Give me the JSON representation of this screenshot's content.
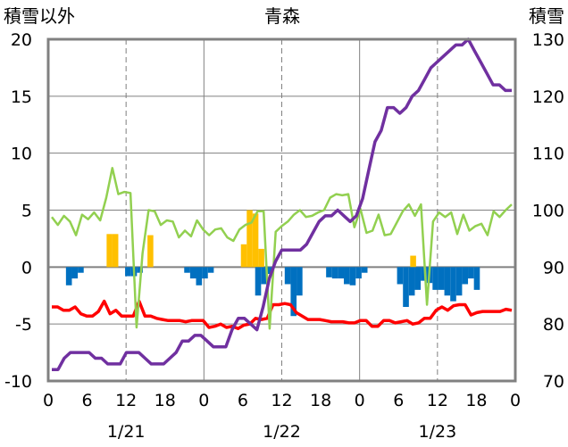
{
  "chart_data": {
    "type": "line",
    "title": "青森",
    "y_left_label": "積雪以外",
    "y_right_label": "積雪",
    "y_left_ticks": [
      "20",
      "15",
      "10",
      "5",
      "0",
      "-5",
      "-10"
    ],
    "y_right_ticks": [
      "130",
      "120",
      "110",
      "100",
      "90",
      "80",
      "70"
    ],
    "ylim_left": [
      -10,
      20
    ],
    "ylim_right": [
      70,
      130
    ],
    "x_tick_labels": [
      "0",
      "6",
      "12",
      "18",
      "0",
      "6",
      "12",
      "18",
      "0",
      "6",
      "12",
      "18",
      "0"
    ],
    "date_labels": [
      "1/21",
      "1/22",
      "1/23"
    ],
    "grid": "dashed at 12h marks, solid at day boundaries",
    "series": [
      {
        "key": "temperature",
        "color": "#ff0000",
        "axis": "left",
        "values": [
          -3.5,
          -3.5,
          -3.8,
          -3.8,
          -3.5,
          -4.1,
          -4.3,
          -4.3,
          -3.9,
          -3,
          -4.1,
          -3.8,
          -4.3,
          -4.3,
          -4.3,
          -3,
          -4.3,
          -4.3,
          -4.5,
          -4.6,
          -4.7,
          -4.7,
          -4.7,
          -4.8,
          -4.7,
          -4.7,
          -4.7,
          -5.3,
          -5.2,
          -5,
          -5.3,
          -5.2,
          -5.4,
          -5.1,
          -5,
          -4.5,
          -4.6,
          -4.5,
          -3.3,
          -3.3,
          -3.2,
          -3.3,
          -4,
          -4.3,
          -4.6,
          -4.6,
          -4.6,
          -4.7,
          -4.8,
          -4.8,
          -4.8,
          -4.9,
          -4.9,
          -4.7,
          -4.7,
          -5.2,
          -5.2,
          -4.7,
          -4.7,
          -4.9,
          -4.8,
          -4.7,
          -5,
          -4.9,
          -4.5,
          -4.5,
          -3.8,
          -3.5,
          -3.8,
          -3.4,
          -3.3,
          -3.3,
          -4.2,
          -4.0,
          -3.9,
          -3.9,
          -3.9,
          -3.9,
          -3.7,
          -3.8
        ]
      },
      {
        "key": "wind_speed",
        "color": "#92d050",
        "axis": "left",
        "values": [
          4.4,
          3.7,
          4.5,
          4,
          2.8,
          4.6,
          4.2,
          4.8,
          4.1,
          6.1,
          8.7,
          6.4,
          6.6,
          6.5,
          -5.3,
          1.2,
          5,
          4.9,
          3.7,
          4.1,
          4,
          2.6,
          3.2,
          2.7,
          4.1,
          3.3,
          2.8,
          3.3,
          3.4,
          2.6,
          2.3,
          3.3,
          3.7,
          3.9,
          4.9,
          4.9,
          -5.4,
          3.1,
          3.6,
          4,
          4.6,
          5,
          4.4,
          4.5,
          4.8,
          5,
          6.1,
          6.4,
          6.3,
          6.4,
          3.5,
          5.1,
          3,
          3.2,
          4.6,
          2.8,
          2.9,
          3.9,
          4.9,
          5.5,
          4.5,
          5.5,
          -3.3,
          4,
          4.8,
          4.4,
          4.8,
          2.9,
          4.6,
          3.2,
          3.6,
          3.8,
          2.8,
          4.9,
          4.4,
          5,
          5.5
        ]
      },
      {
        "key": "snow_depth",
        "color": "#7030a0",
        "axis": "right",
        "values": [
          72,
          72,
          74,
          75,
          75,
          75,
          75,
          74,
          74,
          73,
          73,
          73,
          75,
          75,
          75,
          74,
          73,
          73,
          73,
          74,
          75,
          77,
          77,
          78,
          78,
          77,
          76,
          76,
          76,
          79,
          81,
          81,
          80,
          79,
          83,
          88,
          91,
          93,
          93,
          93,
          93,
          94,
          96,
          98,
          99,
          99,
          100,
          99,
          98,
          99,
          102,
          107,
          112,
          114,
          118,
          118,
          117,
          118,
          120,
          121,
          123,
          125,
          126,
          127,
          128,
          129,
          129,
          130,
          128,
          126,
          124,
          122,
          122,
          121,
          121
        ]
      },
      {
        "key": "precipitation",
        "color": "#ffc000",
        "axis": "left",
        "values": [
          0,
          0,
          0,
          0,
          0,
          0,
          0,
          0,
          0,
          0,
          2.9,
          2.9,
          0,
          0,
          0,
          0,
          0,
          2.8,
          0,
          0,
          0,
          0,
          0,
          0,
          0,
          0,
          0,
          0,
          0,
          0,
          0,
          0,
          0,
          2,
          5,
          4.7,
          1.6,
          0,
          0,
          0,
          0,
          0,
          0,
          0,
          0,
          0,
          0,
          0,
          0,
          0,
          0,
          0,
          0,
          0,
          0,
          0,
          0,
          0,
          0,
          0,
          0,
          0,
          1,
          0,
          0,
          0,
          0,
          0,
          0,
          0,
          0,
          0,
          0,
          0,
          0,
          0,
          0,
          0,
          0,
          0
        ]
      },
      {
        "key": "sunshine_negative",
        "color": "#0070c0",
        "axis": "left",
        "values": [
          0,
          0,
          0,
          -1.6,
          -1,
          -0.5,
          0,
          0,
          0,
          0,
          0,
          0,
          0,
          -0.8,
          -0.8,
          -0.5,
          0,
          0,
          0,
          0,
          0,
          0,
          0,
          -0.5,
          -1,
          -1.6,
          -1,
          -0.5,
          0,
          0,
          0,
          0,
          0,
          0,
          0,
          -2.5,
          -1.5,
          -0.6,
          0,
          0,
          -1.5,
          -4.3,
          -2.5,
          0,
          0,
          0,
          0,
          -0.9,
          -1,
          -1,
          -1.5,
          -1.6,
          -1,
          -0.5,
          0,
          0,
          0,
          0,
          0,
          -1.5,
          -3.5,
          -2.5,
          -2,
          -1.2,
          -1.4,
          -2,
          -2,
          -2.5,
          -3,
          -2.5,
          -1.5,
          -1,
          -2,
          0,
          0,
          0,
          0,
          0,
          0
        ]
      }
    ]
  }
}
